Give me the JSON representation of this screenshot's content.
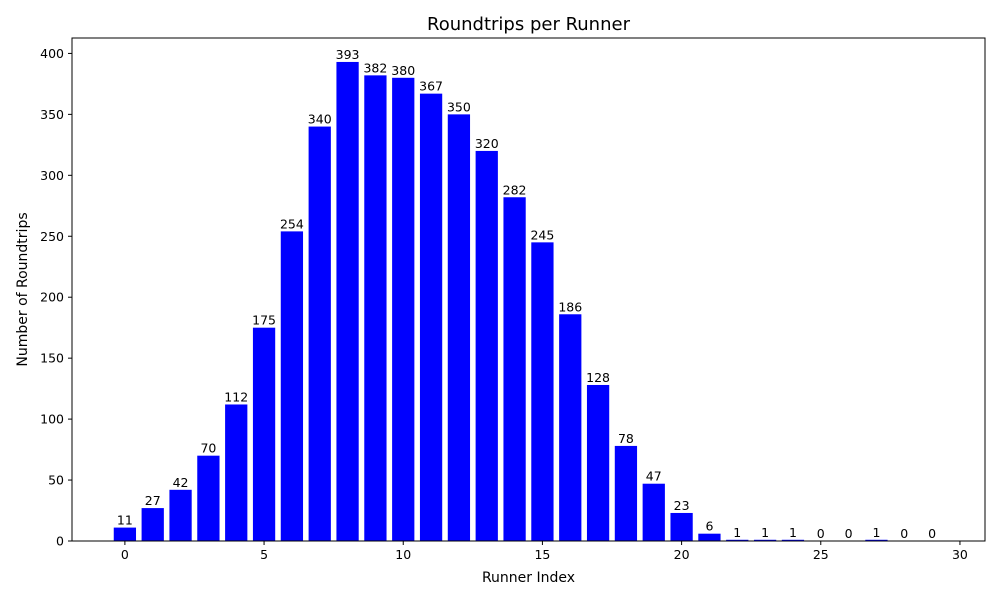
{
  "chart_data": {
    "type": "bar",
    "title": "Roundtrips per Runner",
    "xlabel": "Runner Index",
    "ylabel": "Number of Roundtrips",
    "x": [
      0,
      1,
      2,
      3,
      4,
      5,
      6,
      7,
      8,
      9,
      10,
      11,
      12,
      13,
      14,
      15,
      16,
      17,
      18,
      19,
      20,
      21,
      22,
      23,
      24,
      25,
      26,
      27,
      28,
      29
    ],
    "values": [
      11,
      27,
      42,
      70,
      112,
      175,
      254,
      340,
      393,
      382,
      380,
      367,
      350,
      320,
      282,
      245,
      186,
      128,
      78,
      47,
      23,
      6,
      1,
      1,
      1,
      0,
      0,
      1,
      0,
      0
    ],
    "xlim": [
      -1.9,
      30.9
    ],
    "ylim": [
      0,
      412.65
    ],
    "xticks": [
      0,
      5,
      10,
      15,
      20,
      25,
      30
    ],
    "yticks": [
      0,
      50,
      100,
      150,
      200,
      250,
      300,
      350,
      400
    ],
    "bar_color": "#0000ff",
    "grid": false
  }
}
